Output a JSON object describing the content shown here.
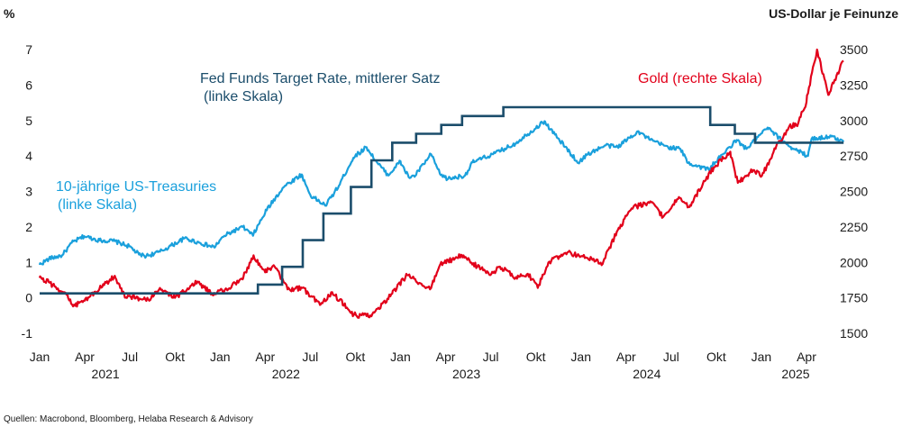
{
  "chart_data": {
    "type": "line",
    "left_unit": "%",
    "right_unit": "US-Dollar je Feinunze",
    "left_ylim": [
      -1,
      7
    ],
    "right_ylim": [
      1500,
      3500
    ],
    "left_ticks": [
      "-1",
      "0",
      "1",
      "2",
      "3",
      "4",
      "5",
      "6",
      "7"
    ],
    "right_ticks": [
      "1500",
      "1750",
      "2000",
      "2250",
      "2500",
      "2750",
      "3000",
      "3250",
      "3500"
    ],
    "x_month_labels": [
      "Jan",
      "Apr",
      "Jul",
      "Okt",
      "Jan",
      "Apr",
      "Jul",
      "Okt",
      "Jan",
      "Apr",
      "Jul",
      "Okt",
      "Jan",
      "Apr",
      "Jul",
      "Okt",
      "Jan",
      "Apr"
    ],
    "x_year_labels": [
      "2021",
      "2022",
      "2023",
      "2024",
      "2025"
    ],
    "x_range": [
      "2021-01-01",
      "2025-06-15"
    ],
    "grid": false,
    "annotations": {
      "fed": [
        "Fed Funds Target Rate, mittlerer Satz",
        "(linke Skala)"
      ],
      "treasury": [
        "10-jährige US-Treasuries",
        "(linke Skala)"
      ],
      "gold": [
        "Gold (rechte Skala)"
      ]
    },
    "series": [
      {
        "name": "Fed Funds Target Rate, mittlerer Satz",
        "axis": "left",
        "color": "#1b4d6b",
        "step": true,
        "points": [
          [
            "2021-01-01",
            0.125
          ],
          [
            "2022-03-17",
            0.375
          ],
          [
            "2022-05-05",
            0.875
          ],
          [
            "2022-06-16",
            1.625
          ],
          [
            "2022-07-28",
            2.375
          ],
          [
            "2022-09-22",
            3.125
          ],
          [
            "2022-11-03",
            3.875
          ],
          [
            "2022-12-15",
            4.375
          ],
          [
            "2023-02-02",
            4.625
          ],
          [
            "2023-03-23",
            4.875
          ],
          [
            "2023-05-04",
            5.125
          ],
          [
            "2023-07-27",
            5.375
          ],
          [
            "2024-09-19",
            4.875
          ],
          [
            "2024-11-08",
            4.625
          ],
          [
            "2024-12-19",
            4.375
          ],
          [
            "2025-06-15",
            4.375
          ]
        ]
      },
      {
        "name": "10-jährige US-Treasuries",
        "axis": "left",
        "color": "#1aa0dc",
        "points": [
          [
            "2021-01-01",
            0.93
          ],
          [
            "2021-01-20",
            1.1
          ],
          [
            "2021-02-15",
            1.2
          ],
          [
            "2021-03-05",
            1.55
          ],
          [
            "2021-03-31",
            1.74
          ],
          [
            "2021-05-01",
            1.62
          ],
          [
            "2021-06-01",
            1.6
          ],
          [
            "2021-06-30",
            1.45
          ],
          [
            "2021-07-20",
            1.22
          ],
          [
            "2021-08-04",
            1.18
          ],
          [
            "2021-09-01",
            1.3
          ],
          [
            "2021-10-21",
            1.68
          ],
          [
            "2021-11-20",
            1.55
          ],
          [
            "2021-12-20",
            1.42
          ],
          [
            "2022-01-10",
            1.75
          ],
          [
            "2022-02-15",
            2.0
          ],
          [
            "2022-03-07",
            1.75
          ],
          [
            "2022-04-01",
            2.4
          ],
          [
            "2022-05-06",
            3.1
          ],
          [
            "2022-06-14",
            3.48
          ],
          [
            "2022-07-01",
            2.9
          ],
          [
            "2022-08-01",
            2.6
          ],
          [
            "2022-08-31",
            3.2
          ],
          [
            "2022-09-27",
            3.95
          ],
          [
            "2022-10-24",
            4.25
          ],
          [
            "2022-11-15",
            3.8
          ],
          [
            "2022-12-07",
            3.45
          ],
          [
            "2023-01-01",
            3.85
          ],
          [
            "2023-01-18",
            3.4
          ],
          [
            "2023-02-01",
            3.45
          ],
          [
            "2023-03-02",
            4.05
          ],
          [
            "2023-03-20",
            3.5
          ],
          [
            "2023-04-05",
            3.35
          ],
          [
            "2023-05-10",
            3.45
          ],
          [
            "2023-05-26",
            3.82
          ],
          [
            "2023-07-06",
            4.05
          ],
          [
            "2023-08-21",
            4.35
          ],
          [
            "2023-10-19",
            4.98
          ],
          [
            "2023-11-15",
            4.5
          ],
          [
            "2023-12-27",
            3.8
          ],
          [
            "2024-01-15",
            4.05
          ],
          [
            "2024-02-20",
            4.3
          ],
          [
            "2024-03-15",
            4.25
          ],
          [
            "2024-04-25",
            4.7
          ],
          [
            "2024-05-20",
            4.45
          ],
          [
            "2024-06-25",
            4.25
          ],
          [
            "2024-07-20",
            4.2
          ],
          [
            "2024-08-05",
            3.8
          ],
          [
            "2024-09-16",
            3.62
          ],
          [
            "2024-10-15",
            4.05
          ],
          [
            "2024-11-12",
            4.45
          ],
          [
            "2024-12-01",
            4.2
          ],
          [
            "2025-01-14",
            4.8
          ],
          [
            "2025-02-28",
            4.25
          ],
          [
            "2025-04-04",
            4.0
          ],
          [
            "2025-04-11",
            4.48
          ],
          [
            "2025-05-21",
            4.55
          ],
          [
            "2025-06-15",
            4.4
          ]
        ]
      },
      {
        "name": "Gold",
        "axis": "right",
        "color": "#e2001a",
        "points": [
          [
            "2021-01-01",
            1890
          ],
          [
            "2021-01-20",
            1860
          ],
          [
            "2021-02-25",
            1770
          ],
          [
            "2021-03-08",
            1690
          ],
          [
            "2021-04-01",
            1730
          ],
          [
            "2021-05-10",
            1840
          ],
          [
            "2021-06-01",
            1905
          ],
          [
            "2021-06-20",
            1770
          ],
          [
            "2021-08-10",
            1730
          ],
          [
            "2021-09-01",
            1820
          ],
          [
            "2021-10-01",
            1750
          ],
          [
            "2021-11-16",
            1865
          ],
          [
            "2021-12-15",
            1780
          ],
          [
            "2022-01-15",
            1810
          ],
          [
            "2022-02-15",
            1880
          ],
          [
            "2022-03-08",
            2050
          ],
          [
            "2022-04-01",
            1930
          ],
          [
            "2022-04-18",
            1980
          ],
          [
            "2022-05-16",
            1810
          ],
          [
            "2022-06-15",
            1820
          ],
          [
            "2022-07-21",
            1700
          ],
          [
            "2022-08-15",
            1790
          ],
          [
            "2022-09-28",
            1630
          ],
          [
            "2022-11-03",
            1620
          ],
          [
            "2022-12-15",
            1780
          ],
          [
            "2023-01-15",
            1910
          ],
          [
            "2023-02-28",
            1810
          ],
          [
            "2023-03-20",
            1980
          ],
          [
            "2023-05-04",
            2050
          ],
          [
            "2023-06-30",
            1910
          ],
          [
            "2023-07-20",
            1970
          ],
          [
            "2023-08-21",
            1890
          ],
          [
            "2023-09-15",
            1920
          ],
          [
            "2023-10-05",
            1820
          ],
          [
            "2023-10-27",
            2000
          ],
          [
            "2023-12-04",
            2070
          ],
          [
            "2024-01-15",
            2030
          ],
          [
            "2024-02-14",
            1990
          ],
          [
            "2024-03-08",
            2180
          ],
          [
            "2024-04-12",
            2380
          ],
          [
            "2024-05-20",
            2430
          ],
          [
            "2024-06-15",
            2320
          ],
          [
            "2024-07-17",
            2460
          ],
          [
            "2024-08-08",
            2390
          ],
          [
            "2024-09-26",
            2670
          ],
          [
            "2024-10-30",
            2780
          ],
          [
            "2024-11-14",
            2560
          ],
          [
            "2024-12-15",
            2650
          ],
          [
            "2025-01-02",
            2610
          ],
          [
            "2025-01-30",
            2800
          ],
          [
            "2025-02-24",
            2950
          ],
          [
            "2025-03-15",
            2980
          ],
          [
            "2025-04-01",
            3130
          ],
          [
            "2025-04-22",
            3500
          ],
          [
            "2025-05-15",
            3180
          ],
          [
            "2025-06-15",
            3420
          ]
        ]
      }
    ]
  },
  "source": "Quellen: Macrobond, Bloomberg, Helaba Research & Advisory"
}
